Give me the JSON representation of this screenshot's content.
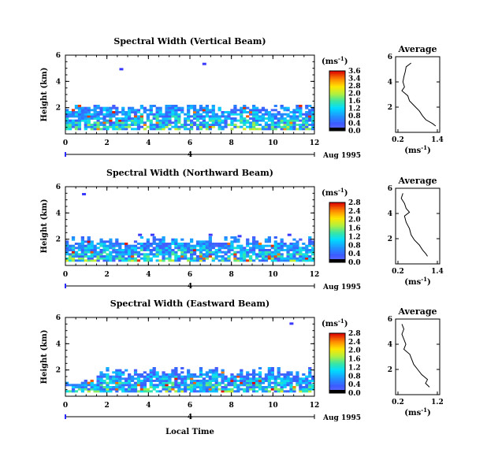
{
  "chart_data": [
    {
      "type": "heatmap",
      "title": "Spectral Width (Vertical Beam)",
      "ylabel": "Height (km)",
      "xlim": [
        0,
        12
      ],
      "ylim": [
        0,
        6
      ],
      "xticks": [
        "0",
        "2",
        "4",
        "6",
        "8",
        "10",
        "12"
      ],
      "yticks": [
        "2",
        "4",
        "6"
      ],
      "date_label": "Aug 1995",
      "date_marker": "4",
      "colorbar": {
        "unit_base": "(ms",
        "unit_exp": "-1",
        "unit_close": ")",
        "max": 3.6,
        "labels": [
          "3.6",
          "3.4",
          "2.8",
          "2.0",
          "1.6",
          "1.2",
          "0.8",
          "0.4",
          "0.0"
        ]
      },
      "echo_top_km": 2.2,
      "average": {
        "title": "Average",
        "xlim": [
          0.2,
          1.4
        ],
        "xticks": [
          "0.2",
          "1.4"
        ],
        "ylim": [
          0,
          6
        ],
        "yticks": [
          "2",
          "4",
          "6"
        ],
        "xunit_base": "(ms",
        "xunit_exp": "-1",
        "xunit_close": ")",
        "profile": [
          [
            0.6,
            5.5
          ],
          [
            0.45,
            5.2
          ],
          [
            0.42,
            4.8
          ],
          [
            0.38,
            4.4
          ],
          [
            0.35,
            4.0
          ],
          [
            0.4,
            3.6
          ],
          [
            0.32,
            3.3
          ],
          [
            0.5,
            2.9
          ],
          [
            0.55,
            2.5
          ],
          [
            0.7,
            2.1
          ],
          [
            0.85,
            1.7
          ],
          [
            0.95,
            1.3
          ],
          [
            1.05,
            1.0
          ],
          [
            1.25,
            0.7
          ],
          [
            1.35,
            0.5
          ]
        ]
      }
    },
    {
      "type": "heatmap",
      "title": "Spectral Width (Northward Beam)",
      "ylabel": "Height (km)",
      "xlim": [
        0,
        12
      ],
      "ylim": [
        0,
        6
      ],
      "xticks": [
        "0",
        "2",
        "4",
        "6",
        "8",
        "10",
        "12"
      ],
      "yticks": [
        "2",
        "4",
        "6"
      ],
      "date_label": "Aug 1995",
      "date_marker": "4",
      "colorbar": {
        "unit_base": "(ms",
        "unit_exp": "-1",
        "unit_close": ")",
        "max": 2.8,
        "labels": [
          "2.8",
          "2.4",
          "2.0",
          "1.6",
          "1.2",
          "0.8",
          "0.4",
          "0.0"
        ]
      },
      "echo_top_km": 2.0,
      "average": {
        "title": "Average",
        "xlim": [
          0.2,
          1.4
        ],
        "xticks": [
          "0.2",
          "1.4"
        ],
        "ylim": [
          0,
          6
        ],
        "yticks": [
          "2",
          "4",
          "6"
        ],
        "xunit_base": "(ms",
        "xunit_exp": "-1",
        "xunit_close": ")",
        "profile": [
          [
            0.35,
            5.6
          ],
          [
            0.3,
            5.2
          ],
          [
            0.4,
            4.8
          ],
          [
            0.45,
            4.4
          ],
          [
            0.55,
            4.1
          ],
          [
            0.4,
            3.8
          ],
          [
            0.45,
            3.3
          ],
          [
            0.55,
            2.8
          ],
          [
            0.6,
            2.3
          ],
          [
            0.7,
            1.9
          ],
          [
            0.85,
            1.5
          ],
          [
            0.95,
            1.1
          ],
          [
            1.05,
            0.8
          ],
          [
            1.1,
            0.6
          ]
        ]
      }
    },
    {
      "type": "heatmap",
      "title": "Spectral Width (Eastward Beam)",
      "ylabel": "Height (km)",
      "xlim": [
        0,
        12
      ],
      "ylim": [
        0,
        6
      ],
      "xticks": [
        "0",
        "2",
        "4",
        "6",
        "8",
        "10",
        "12"
      ],
      "yticks": [
        "2",
        "4",
        "6"
      ],
      "date_label": "Aug 1995",
      "date_marker": "4",
      "xlabel": "Local Time",
      "colorbar": {
        "unit_base": "(ms",
        "unit_exp": "-1",
        "unit_close": ")",
        "max": 2.8,
        "labels": [
          "2.8",
          "2.4",
          "2.0",
          "1.6",
          "1.2",
          "0.8",
          "0.4",
          "0.0"
        ]
      },
      "echo_top_km": 2.0,
      "average": {
        "title": "Average",
        "xlim": [
          0.2,
          1.2
        ],
        "xticks": [
          "0.2",
          "1.2"
        ],
        "ylim": [
          0,
          6
        ],
        "yticks": [
          "2",
          "4",
          "6"
        ],
        "xunit_base": "(ms",
        "xunit_exp": "-1",
        "xunit_close": ")",
        "profile": [
          [
            0.3,
            5.6
          ],
          [
            0.35,
            5.2
          ],
          [
            0.3,
            4.8
          ],
          [
            0.35,
            4.4
          ],
          [
            0.4,
            4.0
          ],
          [
            0.35,
            3.6
          ],
          [
            0.5,
            3.2
          ],
          [
            0.55,
            2.8
          ],
          [
            0.6,
            2.4
          ],
          [
            0.7,
            2.0
          ],
          [
            0.8,
            1.6
          ],
          [
            0.95,
            1.2
          ],
          [
            0.9,
            0.9
          ],
          [
            1.0,
            0.6
          ]
        ]
      }
    }
  ]
}
